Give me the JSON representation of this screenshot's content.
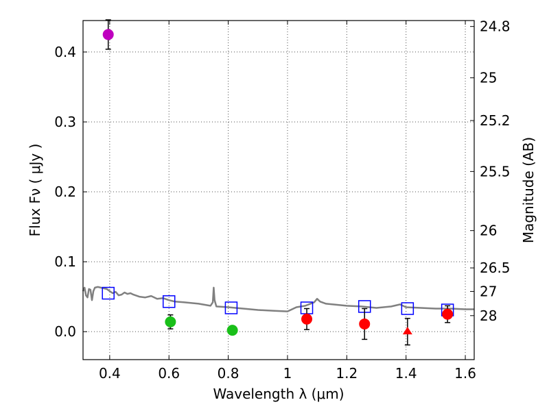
{
  "chart_data": {
    "type": "scatter",
    "xlabel": "Wavelength  λ (μm)",
    "ylabel": "Flux  Fν  ( μJy )",
    "ylabel2": "Magnitude (AB)",
    "xlim": [
      0.31,
      1.63
    ],
    "ylim": [
      -0.04,
      0.445
    ],
    "grid": true,
    "xticks": [
      "0.4",
      "0.6",
      "0.8",
      "1",
      "1.2",
      "1.4",
      "1.6"
    ],
    "xtick_values": [
      0.4,
      0.6,
      0.8,
      1.0,
      1.2,
      1.4,
      1.6
    ],
    "yticks": [
      "0.0",
      "0.1",
      "0.2",
      "0.3",
      "0.4"
    ],
    "ytick_values": [
      0.0,
      0.1,
      0.2,
      0.3,
      0.4
    ],
    "mag_ticks": [
      "24.8",
      "25",
      "25.2",
      "25.5",
      "26",
      "26.5",
      "27",
      "28"
    ],
    "mag_tick_values": [
      24.8,
      25.0,
      25.2,
      25.5,
      26.0,
      26.5,
      27.0,
      28.0
    ],
    "colors": {
      "magenta": "#bf00bf",
      "green": "#19bf19",
      "red": "#ff0000",
      "blue": "#0000ff",
      "model": "#808080"
    },
    "model_sed": {
      "name": "model",
      "x": [
        0.31,
        0.315,
        0.32,
        0.325,
        0.33,
        0.335,
        0.34,
        0.345,
        0.35,
        0.36,
        0.37,
        0.38,
        0.39,
        0.4,
        0.41,
        0.42,
        0.43,
        0.44,
        0.45,
        0.46,
        0.47,
        0.48,
        0.5,
        0.52,
        0.54,
        0.56,
        0.58,
        0.6,
        0.62,
        0.65,
        0.7,
        0.74,
        0.748,
        0.751,
        0.754,
        0.76,
        0.8,
        0.85,
        0.9,
        0.95,
        1.0,
        1.03,
        1.06,
        1.09,
        1.1,
        1.11,
        1.13,
        1.2,
        1.25,
        1.3,
        1.35,
        1.38,
        1.4,
        1.45,
        1.5,
        1.55,
        1.6,
        1.63
      ],
      "y": [
        0.058,
        0.063,
        0.052,
        0.049,
        0.061,
        0.06,
        0.045,
        0.058,
        0.063,
        0.064,
        0.063,
        0.062,
        0.061,
        0.058,
        0.055,
        0.057,
        0.052,
        0.053,
        0.056,
        0.054,
        0.055,
        0.053,
        0.05,
        0.049,
        0.051,
        0.047,
        0.048,
        0.045,
        0.043,
        0.042,
        0.04,
        0.037,
        0.042,
        0.063,
        0.045,
        0.036,
        0.035,
        0.033,
        0.031,
        0.03,
        0.029,
        0.035,
        0.037,
        0.042,
        0.047,
        0.043,
        0.04,
        0.037,
        0.036,
        0.034,
        0.036,
        0.039,
        0.035,
        0.034,
        0.033,
        0.033,
        0.032,
        0.032
      ]
    },
    "series": [
      {
        "name": "magenta point",
        "marker": "circle",
        "color": "magenta",
        "points": [
          {
            "x": 0.395,
            "y": 0.425,
            "err": 0.021
          }
        ]
      },
      {
        "name": "green points",
        "marker": "circle",
        "color": "green",
        "points": [
          {
            "x": 0.605,
            "y": 0.014,
            "err": 0.01
          },
          {
            "x": 0.814,
            "y": 0.002,
            "err": 0.006
          }
        ]
      },
      {
        "name": "red points",
        "marker": "circle",
        "color": "red",
        "points": [
          {
            "x": 1.065,
            "y": 0.018,
            "err": 0.015
          },
          {
            "x": 1.26,
            "y": 0.011,
            "err": 0.022
          },
          {
            "x": 1.54,
            "y": 0.025,
            "err": 0.012
          }
        ]
      },
      {
        "name": "red upper limit",
        "marker": "triangle",
        "color": "red",
        "points": [
          {
            "x": 1.405,
            "y": 0.0,
            "err": 0.019
          }
        ]
      },
      {
        "name": "model band fluxes",
        "marker": "open-square",
        "color": "blue",
        "points": [
          {
            "x": 0.395,
            "y": 0.055
          },
          {
            "x": 0.6,
            "y": 0.043
          },
          {
            "x": 0.81,
            "y": 0.034
          },
          {
            "x": 1.065,
            "y": 0.034
          },
          {
            "x": 1.26,
            "y": 0.036
          },
          {
            "x": 1.405,
            "y": 0.033
          },
          {
            "x": 1.54,
            "y": 0.031
          }
        ]
      }
    ]
  }
}
